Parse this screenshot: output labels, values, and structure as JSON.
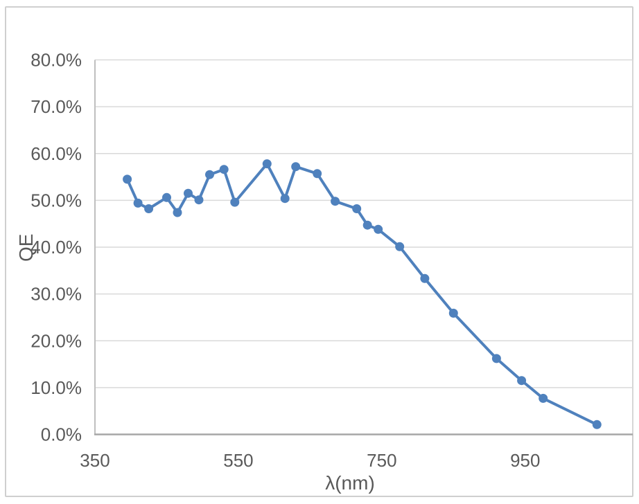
{
  "chart_data": {
    "type": "line",
    "title": "",
    "xlabel": "λ(nm)",
    "ylabel": "QE",
    "xlim": [
      350,
      1100
    ],
    "ylim": [
      0,
      80
    ],
    "grid": true,
    "legend": "none",
    "x_ticks": [
      350,
      550,
      750,
      950
    ],
    "x_tick_labels": [
      "350",
      "550",
      "750",
      "950"
    ],
    "y_ticks": [
      0,
      10,
      20,
      30,
      40,
      50,
      60,
      70,
      80
    ],
    "y_tick_labels": [
      "0.0%",
      "10.0%",
      "20.0%",
      "30.0%",
      "40.0%",
      "50.0%",
      "60.0%",
      "70.0%",
      "80.0%"
    ],
    "series": [
      {
        "name": "QE",
        "marker": "circle",
        "color": "#4f81bd",
        "x": [
          395,
          410,
          425,
          450,
          465,
          480,
          495,
          510,
          530,
          545,
          590,
          615,
          630,
          660,
          685,
          715,
          730,
          745,
          775,
          810,
          850,
          910,
          945,
          975,
          1050
        ],
        "y": [
          54.5,
          49.4,
          48.2,
          50.6,
          47.4,
          51.5,
          50.1,
          55.5,
          56.6,
          49.6,
          57.8,
          50.4,
          57.2,
          55.7,
          49.8,
          48.2,
          44.7,
          43.8,
          40.1,
          33.3,
          25.9,
          16.2,
          11.5,
          7.7,
          2.1
        ]
      }
    ]
  },
  "colors": {
    "series_line": "#4f81bd",
    "gridline": "#d9d9d9",
    "y_axis_line": "#bfbfbf",
    "x_axis_line": "#a6a6a6",
    "plot_right_border": "#d9d9d9",
    "tick_text": "#595959",
    "figure_border": "#cfcfcf",
    "background": "#ffffff"
  }
}
